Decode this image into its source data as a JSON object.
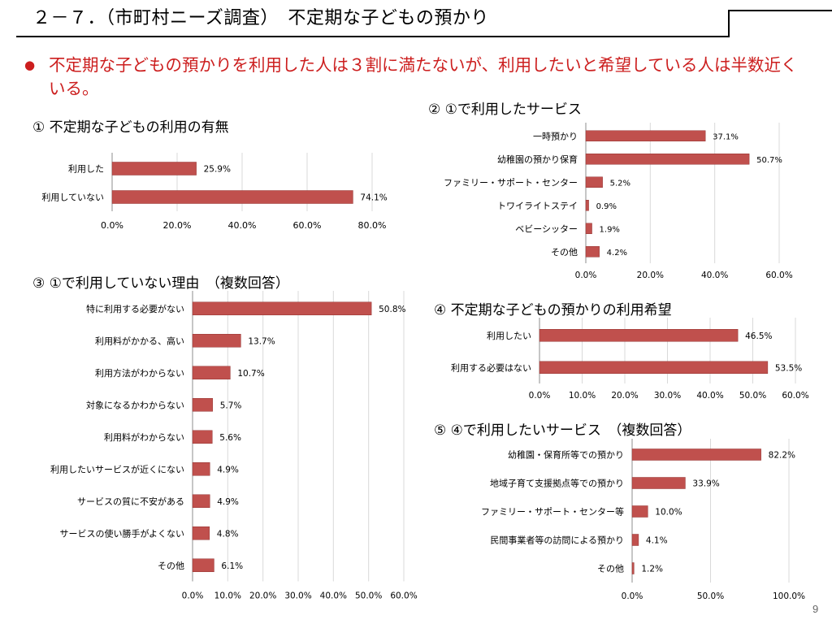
{
  "header": {
    "title": "２－７．（市町村ニーズ調査）　不定期な子どもの預かり"
  },
  "lead": {
    "bullet": "●",
    "text": "不定期な子どもの預かりを利用した人は３割に満たないが、利用したいと希望している人は半数近くいる。"
  },
  "charts": [
    {
      "heading": "① 不定期な子どもの利用の有無"
    },
    {
      "heading": "② ①で利用したサービス"
    },
    {
      "heading": "③ ①で利用していない理由　（複数回答）"
    },
    {
      "heading": "④ 不定期な子どもの預かりの利用希望"
    },
    {
      "heading": "⑤ ④で利用したいサービス　（複数回答）"
    }
  ],
  "page_number": "9",
  "colors": {
    "bar": "#c0504d",
    "bar_stroke": "#943634",
    "grid": "#d9d9d9",
    "lead": "#cc1e1e"
  },
  "chart_data": [
    {
      "type": "bar",
      "orientation": "horizontal",
      "categories": [
        "利用した",
        "利用していない"
      ],
      "values": [
        25.9,
        74.1
      ],
      "value_labels": [
        "25.9%",
        "74.1%"
      ],
      "xlim": [
        0,
        80
      ],
      "x_ticks": [
        "0.0%",
        "20.0%",
        "40.0%",
        "60.0%",
        "80.0%"
      ],
      "grid": true,
      "legend": false
    },
    {
      "type": "bar",
      "orientation": "horizontal",
      "categories": [
        "一時預かり",
        "幼稚園の預かり保育",
        "ファミリー・サポート・センター",
        "トワイライトステイ",
        "ベビーシッター",
        "その他"
      ],
      "values": [
        37.1,
        50.7,
        5.2,
        0.9,
        1.9,
        4.2
      ],
      "value_labels": [
        "37.1%",
        "50.7%",
        "5.2%",
        "0.9%",
        "1.9%",
        "4.2%"
      ],
      "xlim": [
        0,
        60
      ],
      "x_ticks": [
        "0.0%",
        "20.0%",
        "40.0%",
        "60.0%"
      ],
      "grid": true,
      "legend": false
    },
    {
      "type": "bar",
      "orientation": "horizontal",
      "categories": [
        "特に利用する必要がない",
        "利用料がかかる、高い",
        "利用方法がわからない",
        "対象になるかわからない",
        "利用料がわからない",
        "利用したいサービスが近くにない",
        "サービスの質に不安がある",
        "サービスの使い勝手がよくない",
        "その他"
      ],
      "values": [
        50.8,
        13.7,
        10.7,
        5.7,
        5.6,
        4.9,
        4.9,
        4.8,
        6.1
      ],
      "value_labels": [
        "50.8%",
        "13.7%",
        "10.7%",
        "5.7%",
        "5.6%",
        "4.9%",
        "4.9%",
        "4.8%",
        "6.1%"
      ],
      "xlim": [
        0,
        60
      ],
      "x_ticks": [
        "0.0%",
        "10.0%",
        "20.0%",
        "30.0%",
        "40.0%",
        "50.0%",
        "60.0%"
      ],
      "grid": true,
      "legend": false
    },
    {
      "type": "bar",
      "orientation": "horizontal",
      "categories": [
        "利用したい",
        "利用する必要はない"
      ],
      "values": [
        46.5,
        53.5
      ],
      "value_labels": [
        "46.5%",
        "53.5%"
      ],
      "xlim": [
        0,
        60
      ],
      "x_ticks": [
        "0.0%",
        "10.0%",
        "20.0%",
        "30.0%",
        "40.0%",
        "50.0%",
        "60.0%"
      ],
      "grid": true,
      "legend": false
    },
    {
      "type": "bar",
      "orientation": "horizontal",
      "categories": [
        "幼稚園・保育所等での預かり",
        "地域子育て支援拠点等での預かり",
        "ファミリー・サポート・センター等",
        "民間事業者等の訪問による預かり",
        "その他"
      ],
      "values": [
        82.2,
        33.9,
        10.0,
        4.1,
        1.2
      ],
      "value_labels": [
        "82.2%",
        "33.9%",
        "10.0%",
        "4.1%",
        "1.2%"
      ],
      "xlim": [
        0,
        100
      ],
      "x_ticks": [
        "0.0%",
        "50.0%",
        "100.0%"
      ],
      "grid": true,
      "legend": false
    }
  ]
}
